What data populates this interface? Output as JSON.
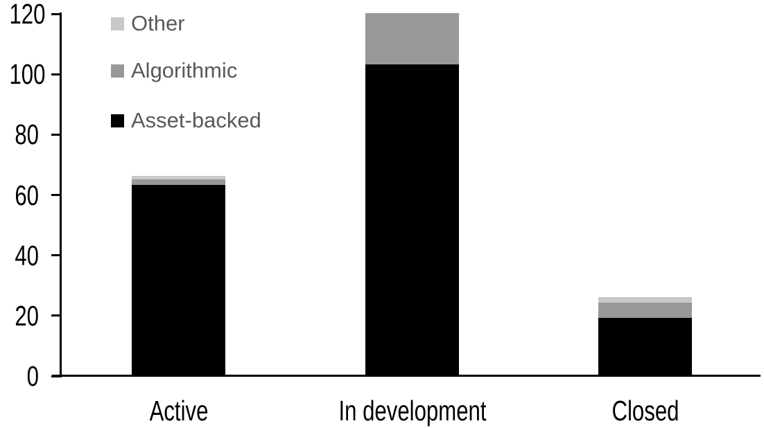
{
  "chart_data": {
    "type": "bar",
    "stacked": true,
    "title": "",
    "xlabel": "",
    "ylabel": "",
    "categories": [
      "Active",
      "In development",
      "Closed"
    ],
    "series": [
      {
        "name": "Asset-backed",
        "color": "#000000",
        "values": [
          63,
          103,
          19
        ]
      },
      {
        "name": "Algorithmic",
        "color": "#989898",
        "values": [
          2,
          17,
          5
        ]
      },
      {
        "name": "Other",
        "color": "#c8c8c8",
        "values": [
          1,
          0,
          2
        ]
      }
    ],
    "totals": [
      66,
      120,
      26
    ],
    "ylim": [
      0,
      120
    ],
    "yticks": [
      0,
      20,
      40,
      60,
      80,
      100,
      120
    ],
    "grid": false,
    "legend_position": "top-left"
  },
  "legend": {
    "items": [
      {
        "label": "Other",
        "color": "#c8c8c8"
      },
      {
        "label": "Algorithmic",
        "color": "#989898"
      },
      {
        "label": "Asset-backed",
        "color": "#000000"
      }
    ],
    "text_color": "#595959"
  },
  "colors": {
    "axis": "#000000",
    "background": "#ffffff"
  }
}
